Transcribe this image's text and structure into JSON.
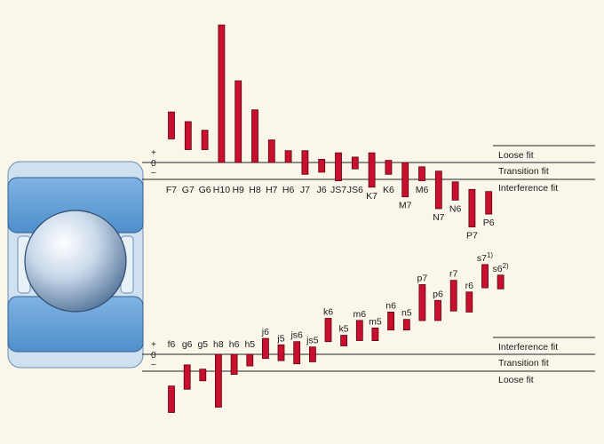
{
  "colors": {
    "background": "#fbf6ea",
    "bar_fill": "#c8102e",
    "bar_stroke": "#5a0010",
    "ring": "#5a9bd4",
    "housing": "#cfe0f0",
    "ball": "#dfe9f3"
  },
  "housing": {
    "sign_plus": "+",
    "sign_zero": "0",
    "sign_minus": "–",
    "zones": [
      "Loose fit",
      "Transition fit",
      "Interference fit"
    ]
  },
  "shaft": {
    "sign_plus": "+",
    "sign_zero": "0",
    "sign_minus": "–",
    "zones": [
      "Interference fit",
      "Transition fit",
      "Loose fit"
    ]
  },
  "chart_data": [
    {
      "type": "bar",
      "categories": [
        "F7",
        "G7",
        "G6",
        "H10",
        "H9",
        "H8",
        "H7",
        "H6",
        "J7",
        "J6",
        "JS7",
        "JS6",
        "K7",
        "K6",
        "M7",
        "M6",
        "N7",
        "N6",
        "P7",
        "P6"
      ],
      "series": [
        {
          "values": [
            [
              47,
              22
            ],
            [
              38,
              12
            ],
            [
              30,
              12
            ],
            [
              128,
              0
            ],
            [
              76,
              0
            ],
            [
              49,
              0
            ],
            [
              21,
              0
            ],
            [
              11,
              0
            ],
            [
              11,
              -11
            ],
            [
              3,
              -9
            ],
            [
              9,
              -17
            ],
            [
              5,
              -6
            ],
            [
              9,
              -23
            ],
            [
              2,
              -11
            ],
            [
              0,
              -32
            ],
            [
              -4,
              -17
            ],
            [
              -8,
              -43
            ],
            [
              -18,
              -35
            ],
            [
              -25,
              -60
            ],
            [
              -27,
              -48
            ]
          ]
        }
      ]
    },
    {
      "type": "bar",
      "categories": [
        "f6",
        "g6",
        "g5",
        "h8",
        "h6",
        "h5",
        "j6",
        "j5",
        "js6",
        "js5",
        "k6",
        "k5",
        "m6",
        "m5",
        "n6",
        "n5",
        "p7",
        "p6",
        "r7",
        "r6",
        "s7",
        "s6"
      ],
      "series": [
        {
          "values": [
            [
              -30,
              -55
            ],
            [
              -10,
              -33
            ],
            [
              -14,
              -25
            ],
            [
              0,
              -50
            ],
            [
              0,
              -19
            ],
            [
              0,
              -11
            ],
            [
              15,
              -4
            ],
            [
              9,
              -6
            ],
            [
              12,
              -9
            ],
            [
              7,
              -7
            ],
            [
              34,
              12
            ],
            [
              18,
              8
            ],
            [
              32,
              13
            ],
            [
              25,
              13
            ],
            [
              40,
              23
            ],
            [
              33,
              23
            ],
            [
              66,
              32
            ],
            [
              51,
              32
            ],
            [
              70,
              41
            ],
            [
              59,
              40
            ],
            [
              85,
              63
            ],
            [
              75,
              62
            ]
          ]
        }
      ],
      "annotations": [
        {
          "label": "s7",
          "superscript": "1)"
        },
        {
          "label": "s6",
          "superscript": "2)"
        }
      ]
    }
  ]
}
